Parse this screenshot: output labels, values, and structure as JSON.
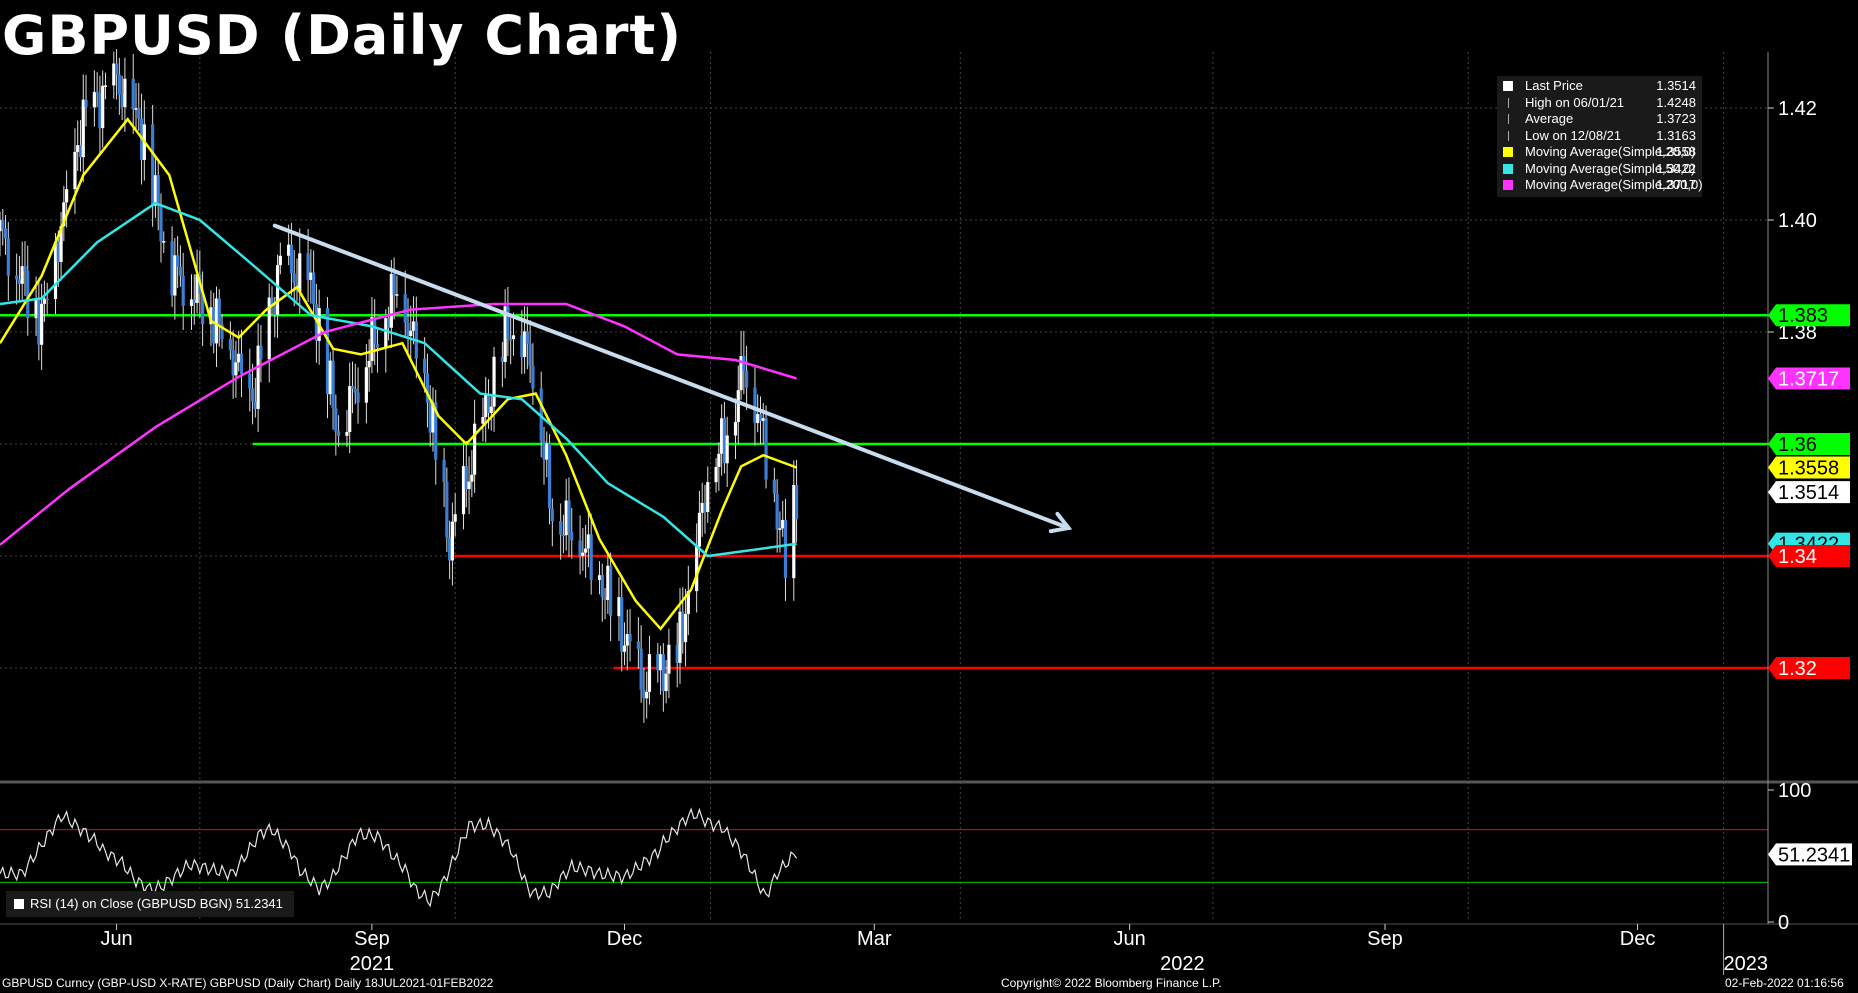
{
  "header": {
    "title": "GBPUSD (Daily Chart)"
  },
  "legend": [
    {
      "label": "Last Price",
      "value": "1.3514",
      "color": "#ffffff",
      "icon": "square-icon"
    },
    {
      "label": "High on 06/01/21",
      "value": "1.4248",
      "color": "#aaaaaa",
      "icon": "high-marker-icon"
    },
    {
      "label": "Average",
      "value": "1.3723",
      "color": "#aaaaaa",
      "icon": "average-marker-icon"
    },
    {
      "label": "Low on 12/08/21",
      "value": "1.3163",
      "color": "#aaaaaa",
      "icon": "low-marker-icon"
    },
    {
      "label": "Moving Average(Simple,20,0)",
      "value": "1.3558",
      "color": "#ffff00",
      "icon": "square-icon"
    },
    {
      "label": "Moving Average(Simple,50,0)",
      "value": "1.3422",
      "color": "#33e6e6",
      "icon": "square-icon"
    },
    {
      "label": "Moving Average(Simple,200,0)",
      "value": "1.3717",
      "color": "#ff33ff",
      "icon": "square-icon"
    }
  ],
  "rsi_panel": {
    "label": "RSI (14)  on Close (GBPUSD BGN) 51.2341"
  },
  "footer": {
    "left": "GBPUSD Curncy (GBP-USD X-RATE) GBPUSD (Daily Chart)  Daily 18JUL2021-01FEB2022",
    "center": "Copyright© 2022 Bloomberg Finance L.P.",
    "right": "02-Feb-2022 01:16:56"
  },
  "chart_data": [
    {
      "type": "candlestick",
      "title": "GBPUSD (Daily Chart)",
      "y_range": [
        1.3,
        1.43
      ],
      "y_ticks": [
        "1.42",
        "1.40",
        "1.38",
        "1.36",
        "1.34",
        "1.32"
      ],
      "x_month_labels": [
        "Jun",
        "Sep",
        "Dec",
        "Mar",
        "Jun",
        "Sep",
        "Dec"
      ],
      "x_year_labels": [
        "2021",
        "2022",
        "2023"
      ],
      "price_path": [
        [
          "2021-04-20",
          1.398
        ],
        [
          "2021-05-05",
          1.382
        ],
        [
          "2021-05-20",
          1.418
        ],
        [
          "2021-06-01",
          1.4248
        ],
        [
          "2021-06-10",
          1.416
        ],
        [
          "2021-06-20",
          1.392
        ],
        [
          "2021-07-05",
          1.384
        ],
        [
          "2021-07-20",
          1.368
        ],
        [
          "2021-07-30",
          1.392
        ],
        [
          "2021-08-10",
          1.388
        ],
        [
          "2021-08-20",
          1.362
        ],
        [
          "2021-09-01",
          1.378
        ],
        [
          "2021-09-10",
          1.388
        ],
        [
          "2021-09-20",
          1.372
        ],
        [
          "2021-09-29",
          1.342
        ],
        [
          "2021-10-10",
          1.362
        ],
        [
          "2021-10-20",
          1.381
        ],
        [
          "2021-10-28",
          1.376
        ],
        [
          "2021-11-05",
          1.348
        ],
        [
          "2021-11-15",
          1.343
        ],
        [
          "2021-11-25",
          1.333
        ],
        [
          "2021-12-08",
          1.3163
        ],
        [
          "2021-12-20",
          1.322
        ],
        [
          "2021-12-31",
          1.354
        ],
        [
          "2022-01-07",
          1.362
        ],
        [
          "2022-01-13",
          1.374
        ],
        [
          "2022-01-18",
          1.366
        ],
        [
          "2022-01-25",
          1.348
        ],
        [
          "2022-01-28",
          1.339
        ],
        [
          "2022-02-01",
          1.3514
        ]
      ],
      "series": [
        {
          "name": "Moving Average(Simple,20,0)",
          "color": "#ffff00",
          "last": 1.3558,
          "points": [
            [
              "2021-04-20",
              1.378
            ],
            [
              "2021-05-05",
              1.39
            ],
            [
              "2021-05-20",
              1.408
            ],
            [
              "2021-06-05",
              1.418
            ],
            [
              "2021-06-20",
              1.408
            ],
            [
              "2021-07-05",
              1.382
            ],
            [
              "2021-07-15",
              1.379
            ],
            [
              "2021-07-25",
              1.384
            ],
            [
              "2021-08-05",
              1.388
            ],
            [
              "2021-08-18",
              1.377
            ],
            [
              "2021-08-28",
              1.376
            ],
            [
              "2021-09-12",
              1.378
            ],
            [
              "2021-09-25",
              1.365
            ],
            [
              "2021-10-05",
              1.36
            ],
            [
              "2021-10-20",
              1.368
            ],
            [
              "2021-10-30",
              1.369
            ],
            [
              "2021-11-10",
              1.358
            ],
            [
              "2021-11-22",
              1.343
            ],
            [
              "2021-12-05",
              1.332
            ],
            [
              "2021-12-14",
              1.327
            ],
            [
              "2021-12-25",
              1.334
            ],
            [
              "2022-01-05",
              1.348
            ],
            [
              "2022-01-12",
              1.356
            ],
            [
              "2022-01-20",
              1.358
            ],
            [
              "2022-02-01",
              1.3558
            ]
          ]
        },
        {
          "name": "Moving Average(Simple,50,0)",
          "color": "#33e6e6",
          "last": 1.3422,
          "points": [
            [
              "2021-04-20",
              1.385
            ],
            [
              "2021-05-05",
              1.386
            ],
            [
              "2021-05-25",
              1.396
            ],
            [
              "2021-06-15",
              1.403
            ],
            [
              "2021-07-01",
              1.4
            ],
            [
              "2021-07-20",
              1.392
            ],
            [
              "2021-08-10",
              1.383
            ],
            [
              "2021-09-01",
              1.381
            ],
            [
              "2021-09-20",
              1.378
            ],
            [
              "2021-10-10",
              1.369
            ],
            [
              "2021-10-25",
              1.368
            ],
            [
              "2021-11-10",
              1.361
            ],
            [
              "2021-11-25",
              1.353
            ],
            [
              "2021-12-15",
              1.347
            ],
            [
              "2021-12-31",
              1.34
            ],
            [
              "2022-01-15",
              1.341
            ],
            [
              "2022-02-01",
              1.3422
            ]
          ]
        },
        {
          "name": "Moving Average(Simple,200,0)",
          "color": "#ff33ff",
          "last": 1.3717,
          "points": [
            [
              "2021-04-20",
              1.342
            ],
            [
              "2021-05-15",
              1.352
            ],
            [
              "2021-06-15",
              1.363
            ],
            [
              "2021-07-15",
              1.372
            ],
            [
              "2021-08-15",
              1.38
            ],
            [
              "2021-09-15",
              1.384
            ],
            [
              "2021-10-15",
              1.385
            ],
            [
              "2021-11-10",
              1.385
            ],
            [
              "2021-12-01",
              1.381
            ],
            [
              "2021-12-20",
              1.376
            ],
            [
              "2022-01-10",
              1.375
            ],
            [
              "2022-02-01",
              1.3717
            ]
          ]
        }
      ],
      "horizontal_levels": [
        {
          "value": 1.383,
          "label": "1.383",
          "color": "#00ff00",
          "from": "2021-04-20"
        },
        {
          "value": 1.36,
          "label": "1.36",
          "color": "#00ff00",
          "from": "2021-07-20"
        },
        {
          "value": 1.34,
          "label": "1.34",
          "color": "#ff0000",
          "from": "2021-09-29"
        },
        {
          "value": 1.32,
          "label": "1.32",
          "color": "#ff0000",
          "from": "2021-11-27"
        }
      ],
      "right_axis_tags": [
        {
          "label": "1.383",
          "bg": "#00ff00",
          "fg": "#000000"
        },
        {
          "label": "1.3717",
          "bg": "#ff33ff",
          "fg": "#ffffff"
        },
        {
          "label": "1.36",
          "bg": "#00ff00",
          "fg": "#000000"
        },
        {
          "label": "1.3558",
          "bg": "#ffff00",
          "fg": "#000000"
        },
        {
          "label": "1.3514",
          "bg": "#ffffff",
          "fg": "#000000"
        },
        {
          "label": "1.3422",
          "bg": "#33e6e6",
          "fg": "#000000"
        },
        {
          "label": "1.34",
          "bg": "#ff0000",
          "fg": "#ffffff"
        },
        {
          "label": "1.32",
          "bg": "#ff0000",
          "fg": "#ffffff"
        }
      ],
      "trendline": {
        "color": "#c8dcf0",
        "from": [
          "2021-07-28",
          1.399
        ],
        "to": [
          "2022-05-10",
          1.345
        ]
      }
    },
    {
      "type": "line",
      "name": "RSI (14)",
      "y_range": [
        0,
        100
      ],
      "y_ticks": [
        "100",
        "0"
      ],
      "overbought": 70,
      "oversold": 30,
      "last": 51.2341,
      "last_label": "51.2341"
    }
  ]
}
